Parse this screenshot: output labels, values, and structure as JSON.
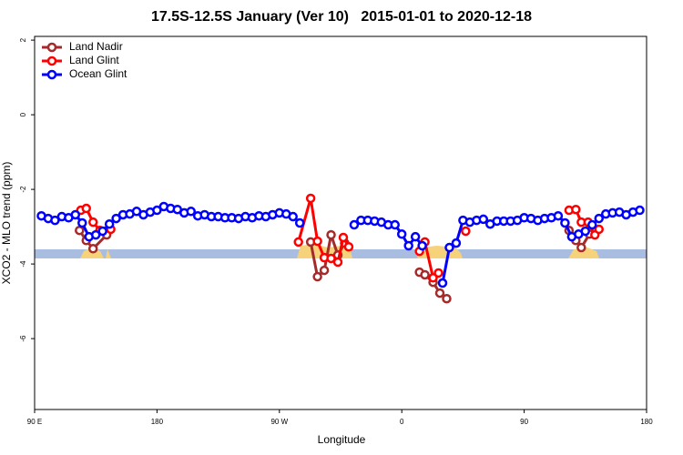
{
  "chart_data": {
    "type": "line",
    "title": "17.5S-12.5S January (Ver 10)   2015-01-01 to 2020-12-18",
    "xlabel": "Longitude",
    "ylabel": "XCO2 - MLO trend (ppm)",
    "xlim": [
      90,
      540
    ],
    "ylim": [
      -7.9,
      2.1
    ],
    "xticks": [
      {
        "value": 90,
        "label": "90 E"
      },
      180,
      {
        "value": 270,
        "label": "90 W"
      },
      {
        "value": 360,
        "label": "0"
      },
      {
        "value": 450,
        "label": "90"
      },
      {
        "value": 540,
        "label": "180"
      }
    ],
    "yticks": [
      2,
      0,
      -2,
      -4,
      -6
    ],
    "legend": "top-left",
    "series": [
      {
        "name": "Land Nadir",
        "color": "#a52a2a",
        "x": [
          123,
          128,
          133,
          143,
          200,
          293,
          298,
          303,
          308,
          313,
          318,
          340,
          373,
          377,
          383,
          388,
          393,
          440,
          483,
          488,
          492,
          498
        ],
        "values": [
          -3.1,
          -3.37,
          -3.59,
          -3.22,
          null,
          -3.41,
          -4.34,
          -4.17,
          -3.22,
          -3.76,
          -3.44,
          null,
          -4.22,
          -4.29,
          -4.49,
          -4.78,
          -4.93,
          null,
          -3.1,
          -3.37,
          -3.56,
          -3.2
        ]
      },
      {
        "name": "Land Glint",
        "color": "#ff0000",
        "x": [
          124,
          128,
          133,
          138,
          146,
          200,
          284,
          293,
          298,
          303,
          308,
          313,
          317,
          321,
          340,
          373,
          377,
          383,
          387,
          395,
          407,
          440,
          483,
          488,
          492,
          497,
          502,
          505
        ],
        "values": [
          -2.56,
          -2.51,
          -2.88,
          -3.1,
          -3.07,
          null,
          -3.41,
          -2.24,
          -3.39,
          -3.83,
          -3.85,
          -3.95,
          -3.29,
          -3.54,
          null,
          -3.66,
          -3.41,
          -4.37,
          -4.24,
          null,
          -3.12,
          null,
          -2.56,
          -2.54,
          -2.88,
          -2.88,
          -3.22,
          -3.07
        ]
      },
      {
        "name": "Ocean Glint",
        "color": "#0000ff",
        "x": [
          95,
          100,
          105,
          110,
          115,
          120,
          125,
          130,
          135,
          140,
          145,
          150,
          155,
          160,
          165,
          170,
          175,
          180,
          185,
          190,
          195,
          200,
          205,
          210,
          215,
          220,
          225,
          230,
          235,
          240,
          245,
          250,
          255,
          260,
          265,
          270,
          275,
          280,
          285,
          300,
          325,
          330,
          335,
          340,
          345,
          350,
          355,
          360,
          365,
          370,
          375,
          382,
          390,
          395,
          400,
          405,
          410,
          415,
          420,
          425,
          430,
          435,
          440,
          445,
          450,
          455,
          460,
          465,
          470,
          475,
          480,
          485,
          490,
          495,
          500,
          505,
          510,
          515,
          520,
          525,
          530,
          535
        ],
        "values": [
          -2.71,
          -2.78,
          -2.83,
          -2.73,
          -2.76,
          -2.68,
          -2.9,
          -3.27,
          -3.22,
          -3.12,
          -2.93,
          -2.78,
          -2.68,
          -2.66,
          -2.59,
          -2.68,
          -2.61,
          -2.56,
          -2.46,
          -2.51,
          -2.54,
          -2.63,
          -2.59,
          -2.71,
          -2.68,
          -2.73,
          -2.73,
          -2.76,
          -2.76,
          -2.78,
          -2.73,
          -2.76,
          -2.71,
          -2.73,
          -2.68,
          -2.63,
          -2.66,
          -2.73,
          -2.9,
          null,
          -2.95,
          -2.83,
          -2.83,
          -2.85,
          -2.88,
          -2.95,
          -2.95,
          -3.2,
          -3.51,
          -3.27,
          -3.51,
          null,
          -4.51,
          -3.56,
          -3.44,
          -2.83,
          -2.88,
          -2.83,
          -2.8,
          -2.93,
          -2.85,
          -2.85,
          -2.85,
          -2.83,
          -2.76,
          -2.78,
          -2.83,
          -2.78,
          -2.76,
          -2.71,
          -2.9,
          -3.27,
          -3.2,
          -3.12,
          -2.95,
          -2.78,
          -2.66,
          -2.63,
          -2.61,
          -2.68,
          -2.61,
          -2.56
        ]
      }
    ]
  }
}
